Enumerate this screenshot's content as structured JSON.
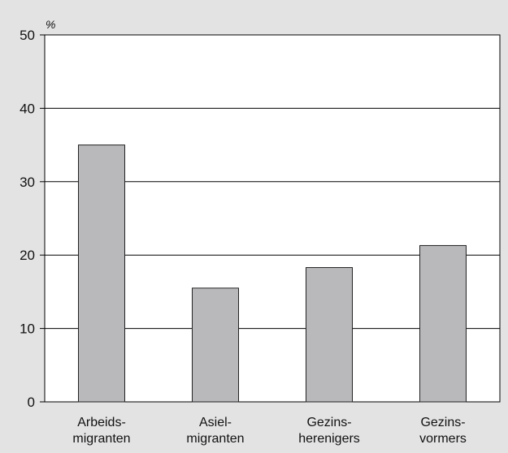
{
  "chart_data": {
    "type": "bar",
    "unit_label": "%",
    "categories": [
      [
        "Arbeids-",
        "migranten"
      ],
      [
        "Asiel-",
        "migranten"
      ],
      [
        "Gezins-",
        "herenigers"
      ],
      [
        "Gezins-",
        "vormers"
      ]
    ],
    "values": [
      35,
      15.5,
      18.3,
      21.3
    ],
    "ylim": [
      0,
      50
    ],
    "yticks": [
      "0",
      "10",
      "20",
      "30",
      "40",
      "50"
    ],
    "grid": true,
    "colors": {
      "background": "#e3e3e4",
      "plot_area": "#ffffff",
      "bar_fill": "#b9b9bc",
      "bar_stroke": "#222222",
      "gridline": "#000000"
    }
  }
}
